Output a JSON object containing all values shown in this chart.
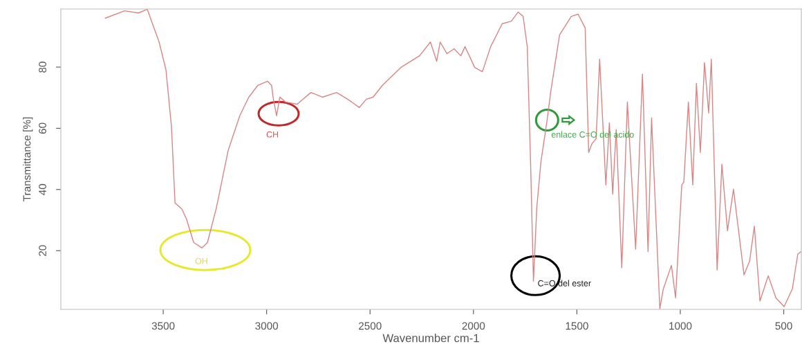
{
  "chart_data": {
    "type": "line",
    "xlabel": "Wavenumber cm-1",
    "ylabel": "Transmittance [%]",
    "xlim": [
      3995,
      415
    ],
    "ylim": [
      0.8,
      99
    ],
    "xticks": [
      3500,
      3000,
      2500,
      2000,
      1500,
      1000,
      500
    ],
    "yticks": [
      20,
      40,
      60,
      80
    ],
    "grid": false,
    "legend": false,
    "marker": "none",
    "line_style": "solid",
    "x": [
      3780,
      3687,
      3620,
      3577,
      3520,
      3487,
      3460,
      3443,
      3410,
      3387,
      3353,
      3313,
      3286,
      3243,
      3186,
      3130,
      3086,
      3043,
      2996,
      2976,
      2969,
      2952,
      2936,
      2909,
      2852,
      2786,
      2729,
      2662,
      2608,
      2552,
      2518,
      2485,
      2441,
      2351,
      2261,
      2208,
      2178,
      2161,
      2128,
      2094,
      2061,
      2041,
      1994,
      1957,
      1917,
      1861,
      1817,
      1784,
      1760,
      1740,
      1724,
      1710,
      1694,
      1674,
      1644,
      1627,
      1584,
      1527,
      1494,
      1460,
      1443,
      1427,
      1407,
      1390,
      1360,
      1343,
      1327,
      1310,
      1283,
      1256,
      1216,
      1183,
      1156,
      1139,
      1099,
      1083,
      1043,
      1023,
      993,
      983,
      961,
      940,
      922,
      903,
      883,
      863,
      850,
      822,
      799,
      772,
      743,
      692,
      665,
      642,
      615,
      575,
      538,
      498,
      458,
      432,
      415
    ],
    "series": [
      {
        "color": "#d98585",
        "values": [
          96,
          98.4,
          97.7,
          98.9,
          88.2,
          79.2,
          60.4,
          35.6,
          33.6,
          30.2,
          22.7,
          20.9,
          22.7,
          34,
          52.8,
          64.1,
          70.2,
          74,
          75.4,
          74,
          70.2,
          64.1,
          70.2,
          68.6,
          67.9,
          71.7,
          70.2,
          71.7,
          69.5,
          66.8,
          69.5,
          70.2,
          74,
          79.9,
          83.7,
          88.2,
          81.9,
          88.2,
          84.4,
          86,
          83.7,
          86.7,
          79.9,
          78.5,
          86.7,
          94.2,
          95,
          98,
          96.6,
          86.7,
          49,
          10,
          34,
          49,
          62.7,
          71.7,
          90.5,
          96.6,
          97.3,
          92.8,
          52.1,
          55,
          56.6,
          82.6,
          41.5,
          61.8,
          38.5,
          59.6,
          14.4,
          68.6,
          20.5,
          77.7,
          19.7,
          63.4,
          1,
          7.3,
          15.2,
          4.6,
          41.5,
          42.4,
          68.6,
          41.5,
          74.7,
          52.1,
          81.5,
          65,
          82.6,
          13.7,
          48.3,
          26.5,
          40.1,
          12.1,
          16.6,
          28,
          3.5,
          11.8,
          4.6,
          1.7,
          7.6,
          18.9,
          19.7
        ]
      }
    ],
    "annotations": [
      {
        "text": "OH",
        "x": 3313,
        "y": 20.9
      },
      {
        "text": "CH",
        "x": 2952,
        "y": 64.1
      },
      {
        "text": "enlace C=O del acido",
        "x": 1644,
        "y": 62.7
      },
      {
        "text": "C=O del ester",
        "x": 1710,
        "y": 10
      }
    ]
  }
}
